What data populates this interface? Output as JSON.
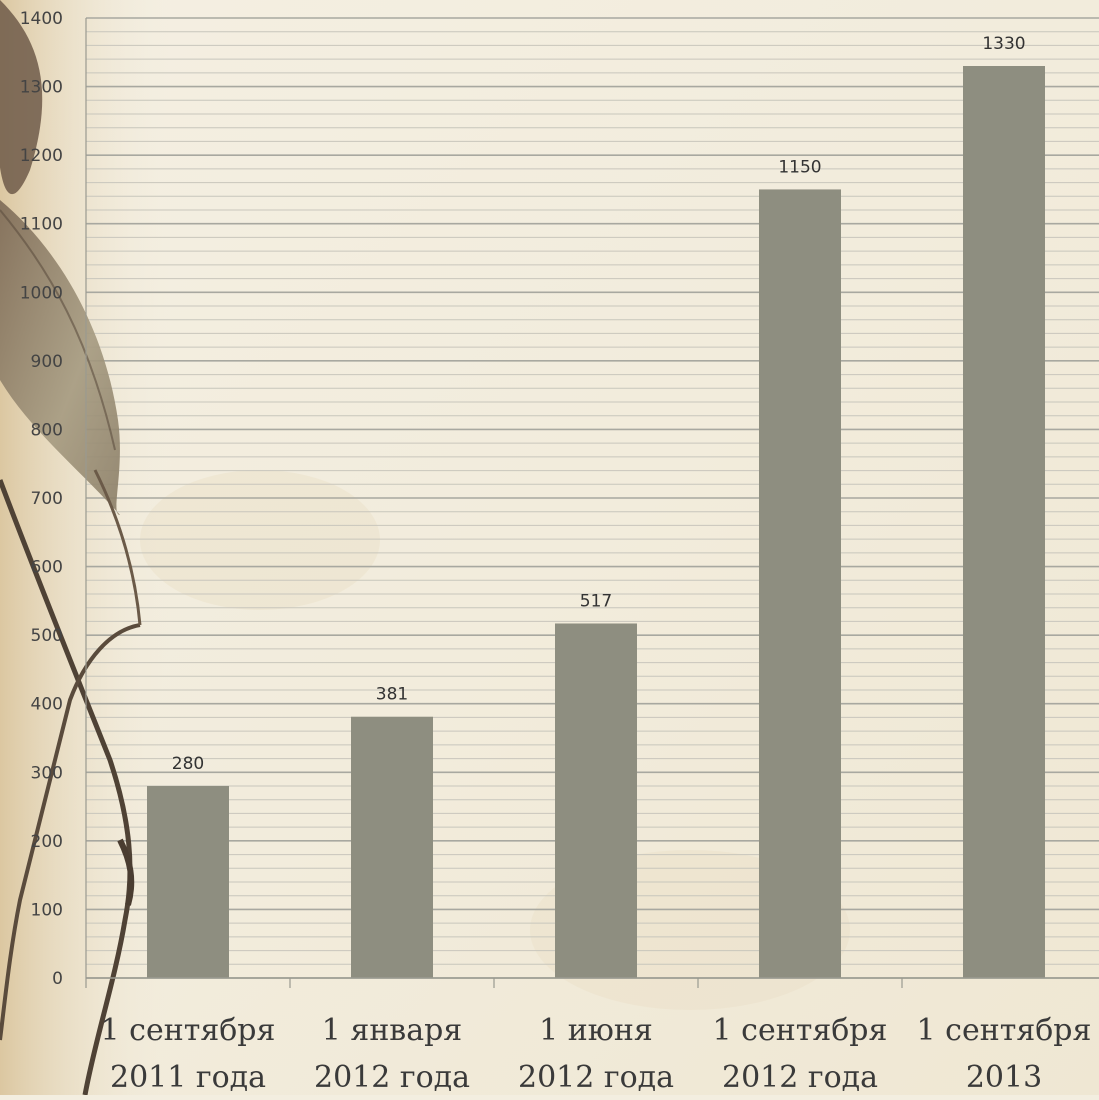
{
  "colors": {
    "background": "#f3eee0",
    "bar": "#8e8e80",
    "major_grid": "#a8a8a0",
    "minor_grid": "#c8c6bc",
    "axis": "#9a9a90"
  },
  "chart_data": {
    "type": "bar",
    "title": "",
    "xlabel": "",
    "ylabel": "",
    "ylim": [
      0,
      1400
    ],
    "yticks": [
      0,
      100,
      200,
      300,
      400,
      500,
      600,
      700,
      800,
      900,
      1000,
      1100,
      1200,
      1300,
      1400
    ],
    "minor_step": 20,
    "grid": true,
    "legend": "none",
    "categories": [
      [
        "1 сентября",
        "2011 года"
      ],
      [
        "1 января",
        "2012 года"
      ],
      [
        "1 июня",
        "2012 года"
      ],
      [
        "1 сентября",
        "2012 года"
      ],
      [
        "1 сентября",
        "2013"
      ]
    ],
    "values": [
      280,
      381,
      517,
      1150,
      1330
    ]
  }
}
